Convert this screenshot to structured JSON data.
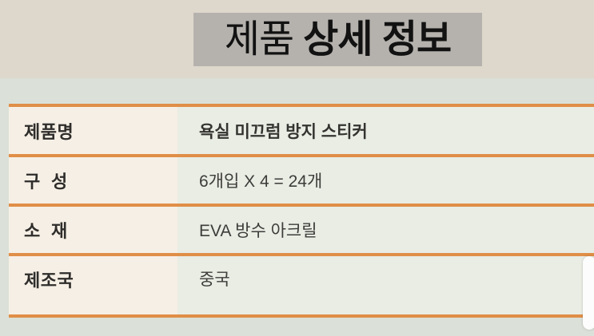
{
  "header": {
    "title_prefix": "제품",
    "title_main": "상세 정보"
  },
  "table": {
    "rows": [
      {
        "label": "제품명",
        "value": "욕실 미끄럼 방지 스티커"
      },
      {
        "label": "구  성",
        "value": "6개입 X 4 = 24개"
      },
      {
        "label": "소  재",
        "value": "EVA 방수 아크릴"
      },
      {
        "label": "제조국",
        "value": "중국"
      }
    ]
  },
  "colors": {
    "top_background": "#ded7cb",
    "title_highlight": "#b5b2ae",
    "body_background": "#dbe0d8",
    "label_cell_background": "#f6efe5",
    "value_cell_background": "#e9ede4",
    "row_border": "#e08e47"
  }
}
